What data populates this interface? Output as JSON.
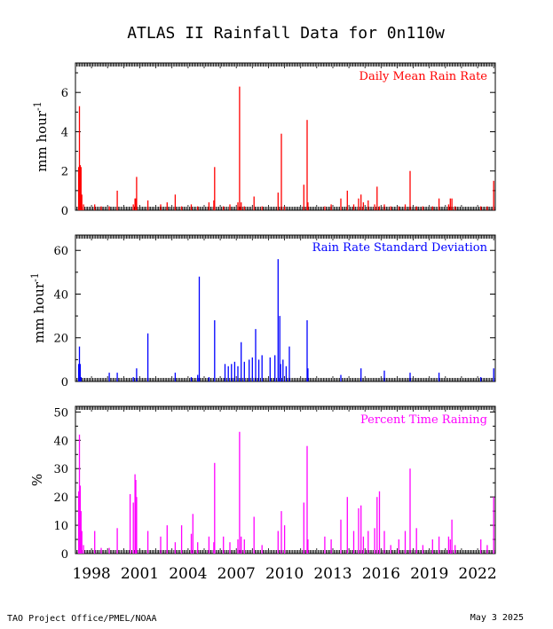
{
  "title": "ATLAS II Rainfall Data for 0n110w",
  "footer_left": "TAO Project Office/PMEL/NOAA",
  "footer_right": "May  3 2025",
  "x_ticks": [
    "1998",
    "2001",
    "2004",
    "2007",
    "2010",
    "2013",
    "2016",
    "2019",
    "2022"
  ],
  "colors": {
    "panel1": "#ff0000",
    "panel2": "#0000ff",
    "panel3": "#ff00ff"
  },
  "chart_data": [
    {
      "type": "bar",
      "title": "Daily Mean Rain Rate",
      "ylabel_main": "mm hour",
      "ylabel_sup": "-1",
      "ylim": [
        0,
        7.5
      ],
      "yticks": [
        0,
        2,
        4,
        6
      ],
      "xlim": [
        1997.0,
        2023.1
      ],
      "x": [
        1997.2,
        1997.25,
        1997.3,
        1997.35,
        1997.4,
        1997.5,
        1998.2,
        1998.6,
        1999.1,
        1999.6,
        2000.6,
        2000.7,
        2000.75,
        2000.8,
        2001.5,
        2002.3,
        2002.7,
        2003.2,
        2003.6,
        2004.2,
        2004.6,
        2005.3,
        2005.6,
        2005.65,
        2006.2,
        2006.6,
        2007.1,
        2007.2,
        2007.3,
        2007.5,
        2008.1,
        2008.6,
        2009.6,
        2009.8,
        2010.0,
        2011.2,
        2011.4,
        2011.45,
        2012.5,
        2012.9,
        2013.5,
        2013.9,
        2014.3,
        2014.6,
        2014.75,
        2014.9,
        2015.2,
        2015.6,
        2015.75,
        2015.9,
        2016.2,
        2016.6,
        2017.1,
        2017.5,
        2017.8,
        2018.2,
        2018.6,
        2019.2,
        2019.6,
        2020.2,
        2020.3,
        2020.4,
        2020.6,
        2022.2,
        2022.6,
        2023.0
      ],
      "values": [
        2.2,
        5.3,
        2.3,
        2.2,
        0.8,
        0.3,
        0.3,
        0.2,
        0.2,
        1.0,
        0.3,
        0.6,
        0.6,
        1.7,
        0.5,
        0.3,
        0.4,
        0.8,
        0.2,
        0.3,
        0.2,
        0.4,
        0.5,
        2.2,
        0.2,
        0.3,
        0.4,
        6.3,
        0.4,
        0.2,
        0.7,
        0.2,
        0.9,
        3.9,
        0.2,
        1.3,
        4.6,
        0.4,
        0.2,
        0.3,
        0.6,
        1.0,
        0.3,
        0.6,
        0.8,
        0.4,
        0.5,
        0.3,
        1.2,
        0.2,
        0.3,
        0.2,
        0.2,
        0.3,
        2.0,
        0.2,
        0.2,
        0.2,
        0.6,
        0.3,
        0.6,
        0.6,
        0.2,
        0.2,
        0.2,
        1.5
      ]
    },
    {
      "type": "bar",
      "title": "Rain Rate Standard Deviation",
      "ylabel_main": "mm hour",
      "ylabel_sup": "-1",
      "ylim": [
        0,
        67
      ],
      "yticks": [
        0,
        20,
        40,
        60
      ],
      "xlim": [
        1997.0,
        2023.1
      ],
      "x": [
        1997.2,
        1997.25,
        1997.3,
        1997.35,
        1999.1,
        1999.6,
        2000.6,
        2000.8,
        2001.5,
        2003.2,
        2004.2,
        2004.6,
        2004.7,
        2005.3,
        2005.65,
        2006.3,
        2006.5,
        2006.7,
        2006.9,
        2007.1,
        2007.3,
        2007.5,
        2007.8,
        2008.0,
        2008.2,
        2008.4,
        2008.6,
        2009.1,
        2009.4,
        2009.6,
        2009.7,
        2009.75,
        2009.9,
        2010.1,
        2010.3,
        2011.4,
        2011.45,
        2013.5,
        2014.75,
        2016.2,
        2017.8,
        2019.6,
        2022.2,
        2023.0
      ],
      "values": [
        8,
        16,
        8,
        2,
        4,
        4,
        2,
        6,
        22,
        4,
        2,
        3,
        48,
        2,
        28,
        8,
        7,
        8,
        9,
        7,
        18,
        9,
        10,
        11,
        24,
        10,
        12,
        11,
        12,
        56,
        30,
        8,
        10,
        7,
        16,
        28,
        6,
        3,
        6,
        5,
        4,
        4,
        2,
        6
      ]
    },
    {
      "type": "bar",
      "title": "Percent Time Raining",
      "ylabel_main": "%",
      "ylabel_sup": "",
      "ylim": [
        0,
        52
      ],
      "yticks": [
        0,
        10,
        20,
        30,
        40,
        50
      ],
      "xlim": [
        1997.0,
        2023.1
      ],
      "x": [
        1997.2,
        1997.25,
        1997.3,
        1997.35,
        1997.4,
        1997.5,
        1998.2,
        1998.6,
        1999.1,
        1999.6,
        2000.4,
        2000.6,
        2000.7,
        2000.75,
        2000.8,
        2001.5,
        2002.3,
        2002.7,
        2003.2,
        2003.6,
        2004.2,
        2004.3,
        2004.6,
        2005.3,
        2005.6,
        2005.65,
        2006.2,
        2006.6,
        2007.1,
        2007.2,
        2007.3,
        2007.5,
        2008.1,
        2008.6,
        2009.6,
        2009.8,
        2010.0,
        2011.2,
        2011.4,
        2011.45,
        2012.5,
        2012.9,
        2013.5,
        2013.9,
        2014.3,
        2014.6,
        2014.75,
        2014.9,
        2015.2,
        2015.6,
        2015.75,
        2015.9,
        2016.2,
        2016.6,
        2017.1,
        2017.5,
        2017.8,
        2018.2,
        2018.6,
        2019.2,
        2019.6,
        2020.2,
        2020.3,
        2020.4,
        2020.6,
        2022.2,
        2022.6,
        2023.0
      ],
      "values": [
        22,
        42,
        24,
        15,
        8,
        3,
        8,
        2,
        2,
        9,
        21,
        18,
        28,
        26,
        20,
        8,
        6,
        10,
        4,
        10,
        7,
        14,
        4,
        6,
        4,
        32,
        6,
        4,
        5,
        43,
        6,
        5,
        13,
        3,
        8,
        15,
        10,
        18,
        38,
        5,
        6,
        5,
        12,
        20,
        8,
        16,
        17,
        6,
        8,
        9,
        20,
        22,
        8,
        3,
        5,
        8,
        30,
        9,
        3,
        5,
        6,
        6,
        5,
        12,
        3,
        5,
        3,
        20
      ]
    }
  ]
}
